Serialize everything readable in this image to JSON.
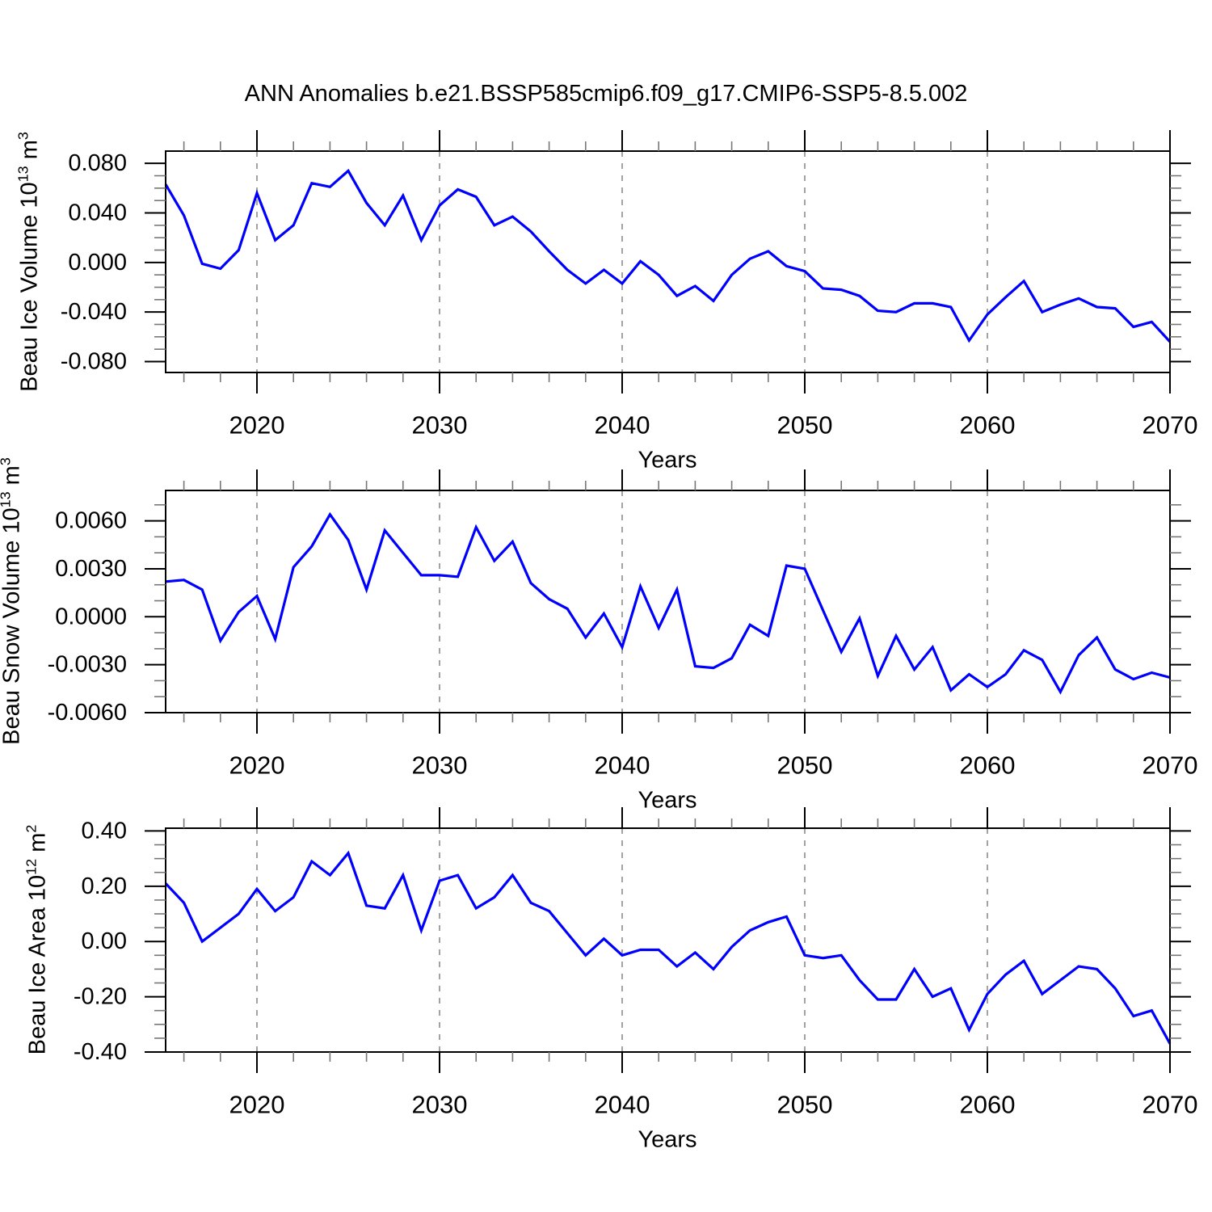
{
  "title": "ANN Anomalies b.e21.BSSP585cmip6.f09_g17.CMIP6-SSP5-8.5.002",
  "colors": {
    "line": "#0000ff",
    "grid": "#999999",
    "axis": "#000000",
    "minor_tick": "#777777",
    "background": "#ffffff"
  },
  "chart_data": {
    "type": "line",
    "title": "ANN Anomalies b.e21.BSSP585cmip6.f09_g17.CMIP6-SSP5-8.5.002",
    "xlabel": "Years",
    "x_range": [
      2015,
      2070
    ],
    "x_major_ticks": [
      2020,
      2030,
      2040,
      2050,
      2060,
      2070
    ],
    "x_tick_labels": [
      "2020",
      "2030",
      "2040",
      "2050",
      "2060",
      "2070"
    ],
    "x_minor_step": 2,
    "grid_lines_at": [
      2020,
      2030,
      2040,
      2050,
      2060
    ],
    "grid_style": "vertical dashed",
    "legend": "none",
    "x": [
      2015,
      2016,
      2017,
      2018,
      2019,
      2020,
      2021,
      2022,
      2023,
      2024,
      2025,
      2026,
      2027,
      2028,
      2029,
      2030,
      2031,
      2032,
      2033,
      2034,
      2035,
      2036,
      2037,
      2038,
      2039,
      2040,
      2041,
      2042,
      2043,
      2044,
      2045,
      2046,
      2047,
      2048,
      2049,
      2050,
      2051,
      2052,
      2053,
      2054,
      2055,
      2056,
      2057,
      2058,
      2059,
      2060,
      2061,
      2062,
      2063,
      2064,
      2065,
      2066,
      2067,
      2068,
      2069,
      2070
    ],
    "panels": [
      {
        "name": "beau-ice-volume",
        "ylabel": "Beau Ice Volume 10^13 m^3",
        "ylabel_parts": [
          {
            "t": "Beau Ice Volume 10"
          },
          {
            "s": "13"
          },
          {
            "t": " m"
          },
          {
            "s": "3"
          }
        ],
        "ylim": [
          -0.0888,
          0.0899
        ],
        "ytick_values": [
          0.08,
          0.04,
          0.0,
          -0.04,
          -0.08
        ],
        "ytick_labels": [
          "0.080",
          "0.040",
          "0.000",
          "-0.040",
          "-0.080"
        ],
        "y_major_step": 0.04,
        "y_minor_step": 0.01,
        "values": [
          0.063,
          0.038,
          -0.001,
          -0.005,
          0.01,
          0.056,
          0.018,
          0.03,
          0.064,
          0.061,
          0.074,
          0.048,
          0.03,
          0.054,
          0.018,
          0.046,
          0.059,
          0.053,
          0.03,
          0.037,
          0.025,
          0.009,
          -0.006,
          -0.017,
          -0.006,
          -0.017,
          0.001,
          -0.01,
          -0.027,
          -0.019,
          -0.031,
          -0.01,
          0.003,
          0.009,
          -0.003,
          -0.007,
          -0.021,
          -0.022,
          -0.027,
          -0.039,
          -0.04,
          -0.033,
          -0.033,
          -0.036,
          -0.063,
          -0.042,
          -0.028,
          -0.015,
          -0.04,
          -0.034,
          -0.029,
          -0.036,
          -0.037,
          -0.052,
          -0.048,
          -0.064
        ]
      },
      {
        "name": "beau-snow-volume",
        "ylabel": "Beau Snow Volume 10^13 m^3",
        "ylabel_parts": [
          {
            "t": "Beau Snow Volume 10"
          },
          {
            "s": "13"
          },
          {
            "t": " m"
          },
          {
            "s": "3"
          }
        ],
        "ylim": [
          -0.006,
          0.0079
        ],
        "ytick_values": [
          0.006,
          0.003,
          0.0,
          -0.003,
          -0.006
        ],
        "ytick_labels": [
          "0.0060",
          "0.0030",
          "0.0000",
          "-0.0030",
          "-0.0060"
        ],
        "y_major_step": 0.003,
        "y_minor_step": 0.001,
        "values": [
          0.0022,
          0.0023,
          0.0017,
          -0.0015,
          0.0003,
          0.0013,
          -0.0014,
          0.0031,
          0.0044,
          0.0064,
          0.0048,
          0.0017,
          0.0054,
          0.004,
          0.0026,
          0.0026,
          0.0025,
          0.0056,
          0.0035,
          0.0047,
          0.0021,
          0.0011,
          0.0005,
          -0.0013,
          0.0002,
          -0.0019,
          0.0019,
          -0.0007,
          0.0017,
          -0.0031,
          -0.0032,
          -0.0026,
          -0.0005,
          -0.0012,
          0.0032,
          0.003,
          0.0004,
          -0.0022,
          -0.0001,
          -0.0037,
          -0.0012,
          -0.0033,
          -0.0019,
          -0.0046,
          -0.0036,
          -0.0044,
          -0.0036,
          -0.0021,
          -0.0027,
          -0.0047,
          -0.0024,
          -0.0013,
          -0.0033,
          -0.0039,
          -0.0035,
          -0.0038
        ]
      },
      {
        "name": "beau-ice-area",
        "ylabel": "Beau Ice Area 10^12 m^2",
        "ylabel_parts": [
          {
            "t": "Beau Ice Area 10"
          },
          {
            "s": "12"
          },
          {
            "t": " m"
          },
          {
            "s": "2"
          }
        ],
        "ylim": [
          -0.4,
          0.41
        ],
        "ytick_values": [
          0.4,
          0.2,
          0.0,
          -0.2,
          -0.4
        ],
        "ytick_labels": [
          "0.40",
          "0.20",
          "0.00",
          "-0.20",
          "-0.40"
        ],
        "y_major_step": 0.2,
        "y_minor_step": 0.05,
        "values": [
          0.21,
          0.14,
          0.0,
          0.05,
          0.1,
          0.19,
          0.11,
          0.16,
          0.29,
          0.24,
          0.32,
          0.13,
          0.12,
          0.24,
          0.04,
          0.22,
          0.24,
          0.12,
          0.16,
          0.24,
          0.14,
          0.11,
          0.03,
          -0.05,
          0.01,
          -0.05,
          -0.03,
          -0.03,
          -0.09,
          -0.04,
          -0.1,
          -0.02,
          0.04,
          0.07,
          0.09,
          -0.05,
          -0.06,
          -0.05,
          -0.14,
          -0.21,
          -0.21,
          -0.1,
          -0.2,
          -0.17,
          -0.32,
          -0.19,
          -0.12,
          -0.07,
          -0.19,
          -0.14,
          -0.09,
          -0.1,
          -0.17,
          -0.27,
          -0.25,
          -0.37
        ]
      }
    ]
  }
}
